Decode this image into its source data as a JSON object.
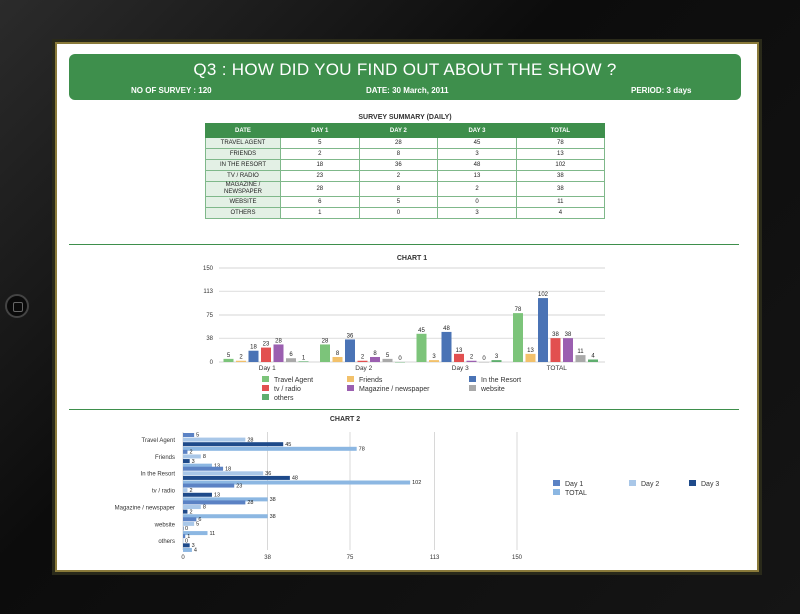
{
  "page": {
    "title": "Q3 :  HOW DID YOU FIND OUT ABOUT THE SHOW ?",
    "survey": "NO OF SURVEY : 120",
    "date": "DATE: 30 March, 2011",
    "period": "PERIOD: 3 days"
  },
  "summary": {
    "title": "SURVEY SUMMARY (DAILY)",
    "headers": [
      "DATE",
      "DAY 1",
      "DAY 2",
      "DAY 3",
      "TOTAL"
    ],
    "rows": [
      [
        "TRAVEL AGENT",
        "5",
        "28",
        "45",
        "78"
      ],
      [
        "FRIENDS",
        "2",
        "8",
        "3",
        "13"
      ],
      [
        "IN THE RESORT",
        "18",
        "36",
        "48",
        "102"
      ],
      [
        "TV / RADIO",
        "23",
        "2",
        "13",
        "38"
      ],
      [
        "MAGAZINE / NEWSPAPER",
        "28",
        "8",
        "2",
        "38"
      ],
      [
        "WEBSITE",
        "6",
        "5",
        "0",
        "11"
      ],
      [
        "OTHERS",
        "1",
        "0",
        "3",
        "4"
      ]
    ]
  },
  "colors": {
    "green": "#3e8f4c",
    "s1": "#7cc47a",
    "s2": "#f2c16b",
    "s3": "#4a73b5",
    "s4": "#e25050",
    "s5": "#9b5fb0",
    "s6": "#a9a9a9",
    "s7": "#5fae6e",
    "day1": "#5b82c4",
    "day2": "#a9c7e8",
    "day3": "#1e4a8a",
    "total": "#8cb7e2"
  },
  "chart_data": [
    {
      "type": "bar",
      "title": "CHART 1",
      "categories": [
        "Day 1",
        "Day 2",
        "Day 3",
        "TOTAL"
      ],
      "series": [
        {
          "name": "Travel Agent",
          "values": [
            5,
            28,
            45,
            78
          ]
        },
        {
          "name": "Friends",
          "values": [
            2,
            8,
            3,
            13
          ]
        },
        {
          "name": "In the Resort",
          "values": [
            18,
            36,
            48,
            102
          ]
        },
        {
          "name": "tv / radio",
          "values": [
            23,
            2,
            13,
            38
          ]
        },
        {
          "name": "Magazine / newspaper",
          "values": [
            28,
            8,
            2,
            38
          ]
        },
        {
          "name": "website",
          "values": [
            6,
            5,
            0,
            11
          ]
        },
        {
          "name": "others",
          "values": [
            1,
            0,
            3,
            4
          ]
        }
      ],
      "yticks": [
        "0",
        "38",
        "75",
        "113",
        "150"
      ],
      "ylim": [
        0,
        150
      ],
      "grid": true,
      "legend": "bottom"
    },
    {
      "type": "bar",
      "orientation": "horizontal",
      "title": "CHART 2",
      "categories": [
        "Travel Agent",
        "Friends",
        "In the Resort",
        "tv / radio",
        "Magazine / newspaper",
        "website",
        "others"
      ],
      "series": [
        {
          "name": "Day 1",
          "values": [
            5,
            2,
            18,
            23,
            28,
            6,
            1
          ]
        },
        {
          "name": "Day 2",
          "values": [
            28,
            8,
            36,
            2,
            8,
            5,
            0
          ]
        },
        {
          "name": "Day 3",
          "values": [
            45,
            3,
            48,
            13,
            2,
            0,
            3
          ]
        },
        {
          "name": "TOTAL",
          "values": [
            78,
            13,
            102,
            38,
            38,
            11,
            4
          ]
        }
      ],
      "xticks": [
        "0",
        "38",
        "75",
        "113",
        "150"
      ],
      "xlim": [
        0,
        150
      ],
      "grid": true,
      "legend": "right"
    }
  ]
}
